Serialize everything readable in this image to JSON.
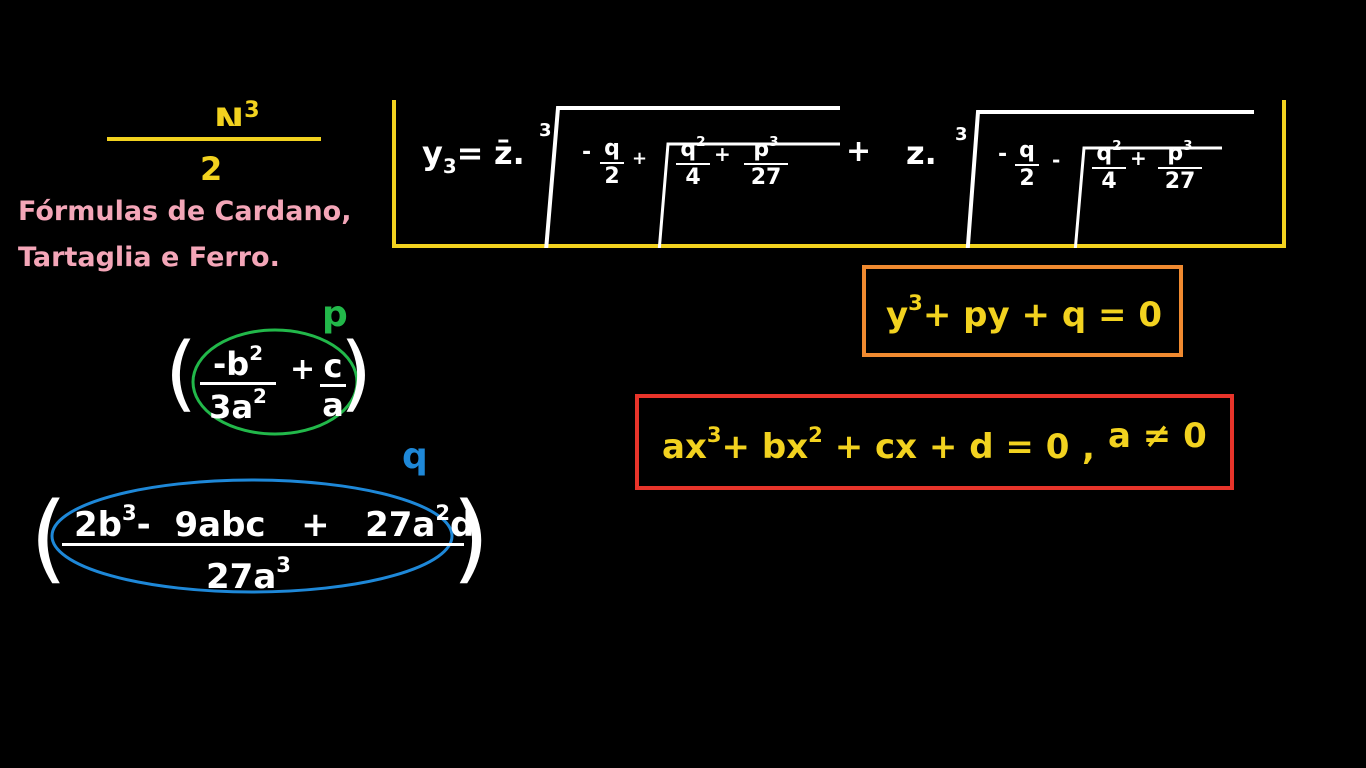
{
  "top_left": {
    "partial_glyph": "N",
    "partial_sup": "3",
    "denominator": "2"
  },
  "title": {
    "line1": "Fórmulas de Cardano,",
    "line2": "Tartaglia e Ferro."
  },
  "formula_y3": {
    "lhs": "y",
    "lhs_sub": "3",
    "eq": "=",
    "factor1": "z̄",
    "dot1": ".",
    "root_index1": "3",
    "minus1": "-",
    "q": "q",
    "two": "2",
    "plus_inner1": "+",
    "q2": "q",
    "q2_exp": "2",
    "four": "4",
    "plus_sq1": "+",
    "p3": "p",
    "p3_exp": "3",
    "twentyseven": "27",
    "plus_mid": "+",
    "factor2": "z",
    "dot2": ".",
    "root_index2": "3",
    "minus2": "-",
    "q_b": "q",
    "two_b": "2",
    "minus_inner2": "-",
    "q2_b": "q",
    "q2_exp_b": "2",
    "four_b": "4",
    "plus_sq2": "+",
    "p3_b": "p",
    "p3_exp_b": "3",
    "twentyseven_b": "27"
  },
  "depressed_cubic": {
    "y": "y",
    "exp": "3",
    "rest": "+ py + q = 0"
  },
  "general_cubic": {
    "ax": "ax",
    "ax_exp": "3",
    "plus1": "+",
    "bx": "bx",
    "bx_exp": "2",
    "rest": "+ cx  + d = 0",
    "comma": ",",
    "cond": "a ≠ 0"
  },
  "p_expr": {
    "label": "p",
    "minus": "-",
    "b": "b",
    "b_exp": "2",
    "den": "3a",
    "den_exp": "2",
    "plus": "+",
    "c": "c",
    "a": "a",
    "lparen": "(",
    "rparen": ")"
  },
  "q_expr": {
    "label": "q",
    "t1": "2b",
    "t1_exp": "3",
    "t1_op": "-",
    "t2": "9abc",
    "t2_op": "+",
    "t3a": "27a",
    "t3_exp": "2",
    "t3b": "d",
    "den": "27a",
    "den_exp": "3",
    "lparen": "(",
    "rparen": ")"
  },
  "colors": {
    "background": "#000000",
    "yellow": "#f2d21f",
    "pink": "#f4a6b8",
    "green": "#22b84a",
    "blue": "#1e88d8",
    "orange": "#f08a30",
    "red": "#e8342a"
  }
}
